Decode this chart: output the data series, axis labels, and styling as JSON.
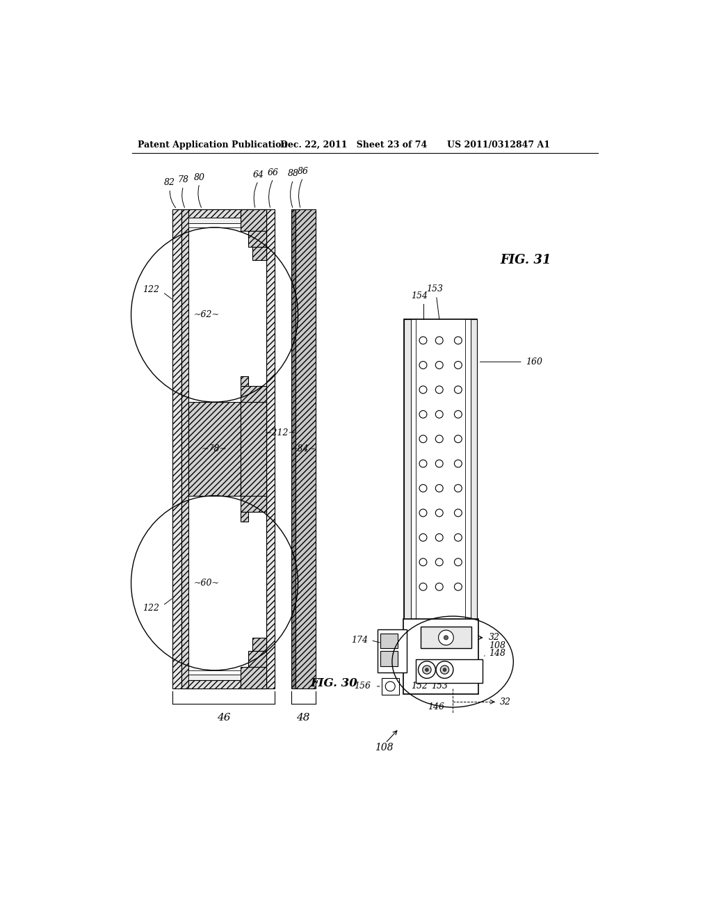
{
  "header_left": "Patent Application Publication",
  "header_mid": "Dec. 22, 2011   Sheet 23 of 74",
  "header_right": "US 2011/0312847 A1",
  "fig30_label": "FIG. 30",
  "fig31_label": "FIG. 31",
  "bg_color": "#ffffff",
  "line_color": "#000000"
}
